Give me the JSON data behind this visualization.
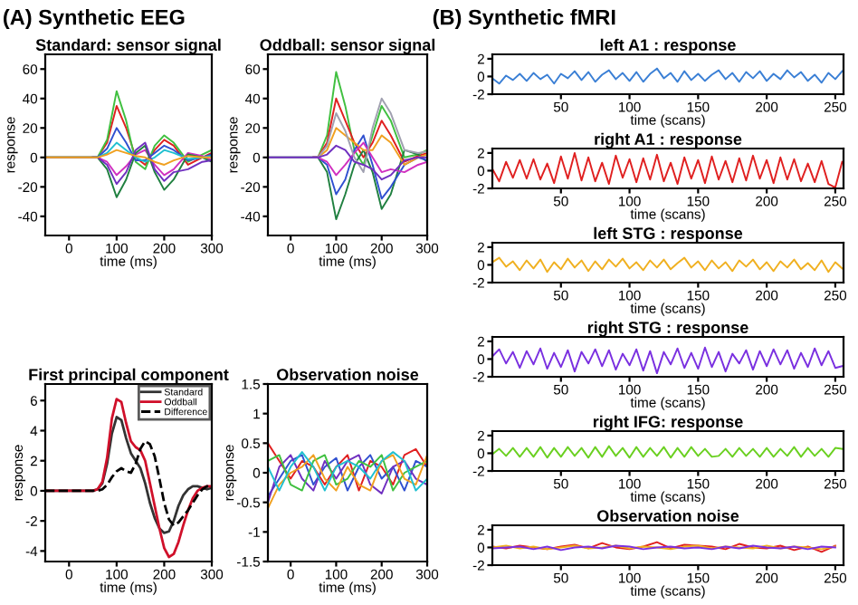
{
  "chart_data": [
    {
      "type": "line",
      "title": "Standard: sensor signal",
      "xlabel": "time (ms)",
      "ylabel": "response",
      "annotations": [
        "(A) Synthetic EEG"
      ],
      "xlim": [
        -50,
        300
      ],
      "ylim": [
        -53,
        70
      ],
      "xticks": [
        0,
        100,
        200,
        300
      ],
      "yticks": [
        -40,
        -20,
        0,
        20,
        40,
        60
      ],
      "grid": false,
      "x": [
        -50,
        0,
        50,
        60,
        80,
        100,
        120,
        140,
        160,
        180,
        200,
        220,
        250,
        280,
        300
      ],
      "series": [
        {
          "color": "#e02020",
          "values": [
            null,
            null,
            0,
            0,
            10,
            35,
            20,
            0,
            -5,
            5,
            12,
            8,
            -5,
            0,
            3
          ]
        },
        {
          "color": "#40c040",
          "values": [
            0,
            0,
            0,
            0,
            12,
            45,
            25,
            -3,
            -8,
            8,
            15,
            10,
            -3,
            2,
            5
          ]
        },
        {
          "color": "#3050d0",
          "values": [
            null,
            null,
            0,
            0,
            6,
            20,
            10,
            -2,
            -2,
            3,
            8,
            5,
            -2,
            0,
            2
          ]
        },
        {
          "color": "#d030c0",
          "values": [
            null,
            null,
            0,
            0,
            -3,
            -12,
            -6,
            2,
            5,
            -5,
            -12,
            -8,
            3,
            1,
            -2
          ]
        },
        {
          "color": "#208040",
          "values": [
            0,
            0,
            0,
            0,
            -8,
            -27,
            -15,
            3,
            8,
            -10,
            -22,
            -15,
            2,
            0,
            -3
          ]
        },
        {
          "color": "#20c0d0",
          "values": [
            null,
            null,
            0,
            0,
            3,
            10,
            5,
            0,
            -3,
            0,
            5,
            3,
            -1,
            0,
            1
          ]
        },
        {
          "color": "#7030c0",
          "values": [
            0,
            0,
            0,
            0,
            -5,
            -18,
            -10,
            5,
            10,
            -8,
            -16,
            -10,
            -8,
            -3,
            -2
          ]
        },
        {
          "color": "#f0a020",
          "values": [
            0,
            0,
            0,
            0,
            2,
            5,
            3,
            1,
            0,
            -3,
            -5,
            -2,
            1,
            0,
            0
          ]
        }
      ]
    },
    {
      "type": "line",
      "title": "Oddball: sensor signal",
      "xlabel": "time (ms)",
      "ylabel": "response",
      "xlim": [
        -50,
        300
      ],
      "ylim": [
        -53,
        70
      ],
      "xticks": [
        0,
        100,
        200,
        300
      ],
      "yticks": [
        -40,
        -20,
        0,
        20,
        40,
        60
      ],
      "grid": false,
      "x": [
        -50,
        0,
        50,
        60,
        80,
        100,
        120,
        140,
        160,
        180,
        200,
        220,
        250,
        280,
        300
      ],
      "series": [
        {
          "color": "#40c040",
          "values": [
            null,
            null,
            0,
            0,
            15,
            58,
            35,
            5,
            -5,
            15,
            35,
            25,
            0,
            2,
            5
          ]
        },
        {
          "color": "#e02020",
          "values": [
            null,
            null,
            0,
            0,
            10,
            40,
            25,
            10,
            0,
            10,
            25,
            15,
            -3,
            1,
            3
          ]
        },
        {
          "color": "#208040",
          "values": [
            0,
            0,
            0,
            0,
            -10,
            -42,
            -25,
            -5,
            5,
            -10,
            -35,
            -25,
            5,
            2,
            -3
          ]
        },
        {
          "color": "#3050d0",
          "values": [
            null,
            null,
            0,
            0,
            -5,
            -25,
            -15,
            5,
            15,
            -5,
            -28,
            -20,
            -5,
            0,
            -2
          ]
        },
        {
          "color": "#f0a020",
          "values": [
            null,
            null,
            0,
            0,
            5,
            20,
            15,
            10,
            5,
            5,
            15,
            10,
            -5,
            0,
            2
          ]
        },
        {
          "color": "#d030c0",
          "values": [
            null,
            null,
            0,
            0,
            -3,
            -12,
            -5,
            3,
            10,
            0,
            -10,
            -8,
            -10,
            -5,
            -3
          ]
        },
        {
          "color": "#a0a0b0",
          "values": [
            0,
            0,
            0,
            0,
            8,
            30,
            18,
            0,
            -10,
            20,
            40,
            30,
            5,
            3,
            4
          ]
        },
        {
          "color": "#7030c0",
          "values": [
            0,
            0,
            0,
            0,
            2,
            8,
            5,
            -3,
            -5,
            -8,
            -15,
            -12,
            -2,
            0,
            0
          ]
        }
      ]
    },
    {
      "type": "line",
      "title": "First principal component",
      "xlabel": "time (ms)",
      "ylabel": "response",
      "xlim": [
        -50,
        300
      ],
      "ylim": [
        -4.7,
        7.1
      ],
      "xticks": [
        0,
        100,
        200,
        300
      ],
      "yticks": [
        -4,
        -2,
        0,
        2,
        4,
        6
      ],
      "grid": false,
      "legend": "top right",
      "x": [
        -50,
        0,
        50,
        60,
        70,
        80,
        90,
        100,
        110,
        120,
        130,
        140,
        150,
        160,
        170,
        180,
        190,
        200,
        210,
        220,
        230,
        240,
        250,
        260,
        270,
        280,
        290,
        300
      ],
      "series": [
        {
          "name": "Standard",
          "color": "#333333",
          "line_style": "solid",
          "values": [
            0,
            0,
            0,
            0.1,
            0.5,
            1.8,
            3.8,
            4.9,
            4.7,
            3.5,
            2.5,
            2.0,
            1.5,
            0.5,
            -0.8,
            -1.8,
            -2.5,
            -2.8,
            -2.7,
            -2.0,
            -1.0,
            -0.3,
            0.1,
            0.3,
            0.3,
            0.2,
            0.1,
            0.2
          ]
        },
        {
          "name": "Oddball",
          "color": "#d0102a",
          "line_style": "solid",
          "values": [
            0,
            0,
            0,
            0.1,
            0.6,
            2.2,
            4.8,
            6.1,
            5.9,
            4.5,
            3.3,
            2.9,
            2.7,
            2.0,
            0.5,
            -1.0,
            -2.5,
            -3.8,
            -4.4,
            -4.2,
            -3.4,
            -2.3,
            -1.3,
            -0.5,
            0,
            0.2,
            0.3,
            0.3
          ]
        },
        {
          "name": "Difference",
          "color": "#000000",
          "line_style": "dashed",
          "values": [
            0,
            0,
            0,
            0,
            0.1,
            0.4,
            0.9,
            1.3,
            1.5,
            1.3,
            1.2,
            1.8,
            2.8,
            3.3,
            3.1,
            2.3,
            0.8,
            -0.8,
            -1.9,
            -2.3,
            -2.1,
            -1.7,
            -1.3,
            -0.8,
            -0.3,
            0.1,
            0.3,
            0.2
          ]
        }
      ]
    },
    {
      "type": "line",
      "title": "Observation noise",
      "xlabel": "time (ms)",
      "ylabel": "response",
      "xlim": [
        -50,
        300
      ],
      "ylim": [
        -1.5,
        1.5
      ],
      "xticks": [
        0,
        100,
        200,
        300
      ],
      "yticks": [
        -1.5,
        -1,
        -0.5,
        0,
        0.5,
        1,
        1.5
      ],
      "grid": false,
      "x": [
        -50,
        -25,
        0,
        25,
        50,
        75,
        100,
        125,
        150,
        175,
        200,
        225,
        250,
        275,
        300
      ],
      "series": [
        {
          "color": "#e02020",
          "values": [
            0.5,
            0.2,
            -0.1,
            0.2,
            0.1,
            -0.2,
            0.1,
            0.3,
            -0.3,
            0.2,
            0.1,
            -0.2,
            0.3,
            0.4,
            0.1
          ]
        },
        {
          "color": "#3050d0",
          "values": [
            -0.4,
            -0.1,
            0.2,
            0.3,
            -0.2,
            0.1,
            0.25,
            -0.3,
            0.1,
            0.3,
            -0.1,
            0.1,
            -0.3,
            0.2,
            0.1
          ]
        },
        {
          "color": "#7030c0",
          "values": [
            -0.5,
            0.1,
            0.3,
            -0.1,
            -0.3,
            0.2,
            -0.1,
            0.2,
            0.3,
            -0.2,
            -0.35,
            0.1,
            0.2,
            -0.1,
            -0.2
          ]
        },
        {
          "color": "#40c040",
          "values": [
            0.2,
            0.3,
            -0.2,
            -0.3,
            0.2,
            0.3,
            -0.2,
            -0.1,
            0.2,
            0.1,
            0.3,
            -0.3,
            0,
            0.1,
            0.2
          ]
        },
        {
          "color": "#f0a020",
          "values": [
            -0.6,
            -0.2,
            0,
            0.1,
            0.3,
            -0.1,
            -0.3,
            0.1,
            -0.2,
            -0.3,
            0.2,
            0.3,
            -0.1,
            -0.2,
            0.3
          ]
        },
        {
          "color": "#20c0d0",
          "values": [
            0.1,
            -0.3,
            0.1,
            0.35,
            0.1,
            -0.3,
            0.1,
            0.2,
            0.1,
            -0.1,
            0.2,
            0.35,
            0.2,
            -0.3,
            -0.1
          ]
        }
      ]
    },
    {
      "type": "line",
      "title": "left A1 : response",
      "xlabel": "time (scans)",
      "annotations": [
        "(B) Synthetic fMRI"
      ],
      "xlim": [
        0,
        256
      ],
      "ylim": [
        -2,
        2.5
      ],
      "xticks": [
        50,
        100,
        150,
        200,
        250
      ],
      "yticks": [
        -2,
        0,
        2
      ],
      "grid": false,
      "x": [
        0,
        5,
        10,
        15,
        20,
        25,
        30,
        35,
        40,
        45,
        50,
        55,
        60,
        65,
        70,
        75,
        80,
        85,
        90,
        95,
        100,
        105,
        110,
        115,
        120,
        125,
        130,
        135,
        140,
        145,
        150,
        155,
        160,
        165,
        170,
        175,
        180,
        185,
        190,
        195,
        200,
        205,
        210,
        215,
        220,
        225,
        230,
        235,
        240,
        245,
        250,
        255
      ],
      "series": [
        {
          "color": "#3a7fd5",
          "values": [
            -0.2,
            -0.8,
            0.1,
            -0.4,
            0.3,
            -0.5,
            0.4,
            -0.3,
            0.2,
            -0.8,
            0.3,
            -0.2,
            0.6,
            -0.4,
            0.5,
            -0.6,
            0.2,
            0.7,
            -0.3,
            0.4,
            -0.5,
            0.5,
            -0.6,
            0.3,
            0.9,
            -0.2,
            0.4,
            -0.6,
            0.6,
            -0.4,
            0.3,
            -0.5,
            0.2,
            0.7,
            -0.3,
            0.4,
            -0.6,
            0.5,
            -0.2,
            0.6,
            -0.5,
            0.3,
            -0.3,
            0.7,
            -0.1,
            0.5,
            -0.5,
            0.2,
            -0.7,
            0.4,
            -0.3,
            0.6
          ]
        }
      ]
    },
    {
      "type": "line",
      "title": "right A1 : response",
      "xlabel": "time (scans)",
      "xlim": [
        0,
        256
      ],
      "ylim": [
        -2,
        2.5
      ],
      "xticks": [
        50,
        100,
        150,
        200,
        250
      ],
      "yticks": [
        -2,
        0,
        2
      ],
      "grid": false,
      "x": [
        0,
        5,
        10,
        15,
        20,
        25,
        30,
        35,
        40,
        45,
        50,
        55,
        60,
        65,
        70,
        75,
        80,
        85,
        90,
        95,
        100,
        105,
        110,
        115,
        120,
        125,
        130,
        135,
        140,
        145,
        150,
        155,
        160,
        165,
        170,
        175,
        180,
        185,
        190,
        195,
        200,
        205,
        210,
        215,
        220,
        225,
        230,
        235,
        240,
        245,
        250,
        255
      ],
      "series": [
        {
          "color": "#e02020",
          "values": [
            0.2,
            -1.2,
            1.0,
            -0.8,
            1.2,
            -0.9,
            1.3,
            -1.0,
            0.8,
            -1.4,
            1.6,
            -0.9,
            2.0,
            -1.1,
            1.5,
            -1.2,
            0.9,
            -1.5,
            1.7,
            -0.8,
            1.3,
            -1.3,
            1.4,
            -1.0,
            1.8,
            -1.2,
            0.9,
            -1.5,
            1.5,
            -0.9,
            1.2,
            -1.4,
            1.6,
            -1.0,
            1.1,
            -1.3,
            1.4,
            -1.1,
            1.7,
            -0.9,
            1.2,
            -1.4,
            1.5,
            -1.0,
            1.3,
            -1.2,
            0.8,
            -1.3,
            1.1,
            -1.5,
            -1.9,
            1.0
          ]
        }
      ]
    },
    {
      "type": "line",
      "title": "left STG : response",
      "xlabel": "time (scans)",
      "xlim": [
        0,
        256
      ],
      "ylim": [
        -2,
        2.5
      ],
      "xticks": [
        50,
        100,
        150,
        200,
        250
      ],
      "yticks": [
        -2,
        0,
        2
      ],
      "grid": false,
      "x": [
        0,
        5,
        10,
        15,
        20,
        25,
        30,
        35,
        40,
        45,
        50,
        55,
        60,
        65,
        70,
        75,
        80,
        85,
        90,
        95,
        100,
        105,
        110,
        115,
        120,
        125,
        130,
        135,
        140,
        145,
        150,
        155,
        160,
        165,
        170,
        175,
        180,
        185,
        190,
        195,
        200,
        205,
        210,
        215,
        220,
        225,
        230,
        235,
        240,
        245,
        250,
        255
      ],
      "series": [
        {
          "color": "#f0b020",
          "values": [
            0.3,
            0.8,
            -0.2,
            0.4,
            -0.6,
            0.5,
            -0.4,
            0.6,
            -0.8,
            0.3,
            -0.5,
            0.7,
            -0.3,
            0.5,
            -0.7,
            0.4,
            -0.5,
            0.6,
            -0.2,
            0.7,
            -0.4,
            0.3,
            -0.6,
            0.5,
            -0.3,
            0.6,
            -0.5,
            0.2,
            0.8,
            -0.3,
            0.4,
            -0.6,
            0.5,
            -0.4,
            0.3,
            -0.7,
            0.5,
            -0.2,
            0.6,
            -0.5,
            0.3,
            -0.7,
            0.4,
            -0.3,
            0.6,
            -0.5,
            0.2,
            -0.6,
            0.5,
            -0.8,
            0.3,
            -0.4
          ]
        }
      ]
    },
    {
      "type": "line",
      "title": "right STG : response",
      "xlabel": "time (scans)",
      "xlim": [
        0,
        256
      ],
      "ylim": [
        -2,
        2.5
      ],
      "xticks": [
        50,
        100,
        150,
        200,
        250
      ],
      "yticks": [
        -2,
        0,
        2
      ],
      "grid": false,
      "x": [
        0,
        5,
        10,
        15,
        20,
        25,
        30,
        35,
        40,
        45,
        50,
        55,
        60,
        65,
        70,
        75,
        80,
        85,
        90,
        95,
        100,
        105,
        110,
        115,
        120,
        125,
        130,
        135,
        140,
        145,
        150,
        155,
        160,
        165,
        170,
        175,
        180,
        185,
        190,
        195,
        200,
        205,
        210,
        215,
        220,
        225,
        230,
        235,
        240,
        245,
        250,
        255
      ],
      "series": [
        {
          "color": "#7a30e0",
          "values": [
            0.3,
            1.1,
            -0.5,
            0.8,
            -1.0,
            0.9,
            -0.6,
            1.2,
            -1.1,
            0.7,
            -0.9,
            1.0,
            -1.4,
            0.8,
            -0.5,
            1.1,
            -0.8,
            1.0,
            -1.2,
            0.6,
            -0.7,
            1.1,
            -1.3,
            0.9,
            -1.6,
            0.8,
            -0.6,
            1.2,
            -1.0,
            0.7,
            -1.1,
            1.3,
            -0.9,
            0.8,
            -1.4,
            0.6,
            -0.5,
            1.0,
            -1.2,
            0.9,
            -0.8,
            1.1,
            -0.6,
            1.0,
            -1.1,
            0.7,
            -0.9,
            1.2,
            -0.7,
            0.9,
            -1.0,
            -0.8
          ]
        }
      ]
    },
    {
      "type": "line",
      "title": "right IFG: response",
      "xlabel": "time (scans)",
      "xlim": [
        0,
        256
      ],
      "ylim": [
        -2,
        2.5
      ],
      "xticks": [
        50,
        100,
        150,
        200,
        250
      ],
      "yticks": [
        -2,
        0,
        2
      ],
      "grid": false,
      "x": [
        0,
        5,
        10,
        15,
        20,
        25,
        30,
        35,
        40,
        45,
        50,
        55,
        60,
        65,
        70,
        75,
        80,
        85,
        90,
        95,
        100,
        105,
        110,
        115,
        120,
        125,
        130,
        135,
        140,
        145,
        150,
        155,
        160,
        165,
        170,
        175,
        180,
        185,
        190,
        195,
        200,
        205,
        210,
        215,
        220,
        225,
        230,
        235,
        240,
        245,
        250,
        255
      ],
      "series": [
        {
          "color": "#6ad020",
          "values": [
            -0.1,
            0.5,
            -0.3,
            0.6,
            -0.4,
            0.6,
            -0.4,
            0.7,
            -0.5,
            0.6,
            -0.4,
            0.7,
            -0.3,
            0.6,
            -0.5,
            0.7,
            -0.4,
            0.8,
            -0.3,
            0.6,
            -0.5,
            0.7,
            -0.4,
            0.6,
            -0.3,
            0.7,
            -0.5,
            0.6,
            -0.4,
            0.7,
            -0.3,
            0.5,
            -0.4,
            -0.3,
            0.5,
            -0.4,
            0.6,
            -0.3,
            0.5,
            -0.4,
            0.6,
            -0.4,
            0.5,
            -0.3,
            0.7,
            -0.4,
            0.6,
            -0.3,
            0.5,
            -0.4,
            0.6,
            0.5
          ]
        }
      ]
    },
    {
      "type": "line",
      "title": "Observation noise",
      "xlabel": "time (scans)",
      "xlim": [
        0,
        256
      ],
      "ylim": [
        -2,
        2.5
      ],
      "xticks": [
        50,
        100,
        150,
        200,
        250
      ],
      "yticks": [
        -2,
        0,
        2
      ],
      "grid": false,
      "x": [
        0,
        10,
        20,
        30,
        40,
        50,
        60,
        70,
        80,
        90,
        100,
        110,
        120,
        130,
        140,
        150,
        160,
        170,
        180,
        190,
        200,
        210,
        220,
        230,
        240,
        250
      ],
      "series": [
        {
          "color": "#e02020",
          "values": [
            0.1,
            -0.1,
            0.2,
            0,
            -0.2,
            0.1,
            0.3,
            -0.1,
            0.5,
            0,
            -0.2,
            0.1,
            0.6,
            -0.1,
            0.3,
            0.2,
            0.1,
            -0.2,
            0.4,
            0,
            -0.1,
            0.2,
            -0.3,
            0.1,
            -0.5,
            0.2
          ]
        },
        {
          "color": "#f0b020",
          "values": [
            0,
            0.2,
            -0.1,
            0.1,
            -0.2,
            0,
            0.2,
            -0.1,
            0,
            0.2,
            -0.1,
            0.1,
            0,
            -0.2,
            0.1,
            0.2,
            -0.1,
            0.1,
            0,
            -0.1,
            0.2,
            -0.1,
            0.1,
            0,
            -0.2,
            0.1
          ]
        },
        {
          "color": "#7a30e0",
          "values": [
            -0.1,
            0,
            0.1,
            -0.2,
            0.1,
            -0.3,
            0,
            0.1,
            -0.1,
            0.2,
            0.1,
            -0.2,
            0,
            0.1,
            -0.1,
            0,
            -0.2,
            0.1,
            -0.1,
            0.2,
            0,
            -0.1,
            0.1,
            -0.2,
            0.1,
            0
          ]
        }
      ]
    }
  ]
}
